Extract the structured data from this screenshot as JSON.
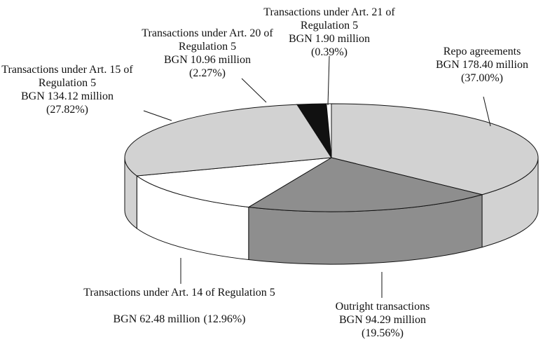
{
  "chart_data": {
    "type": "pie3d",
    "categories": [
      "Repo agreements",
      "Outright transactions",
      "Transactions under Art. 14 of Regulation 5",
      "Transactions under Art. 15 of Regulation 5",
      "Transactions under Art. 20 of Regulation 5",
      "Transactions under Art. 21 of Regulation 5"
    ],
    "values": [
      37.0,
      19.56,
      12.96,
      27.82,
      2.27,
      0.39
    ],
    "value_labels": [
      "(37.00%)",
      "(19.56%)",
      "(12.96%)",
      "(27.82%)",
      "(2.27%)",
      "(0.39%)"
    ],
    "amounts": [
      178.4,
      94.29,
      62.48,
      134.12,
      10.96,
      1.9
    ],
    "amount_labels": [
      "BGN 178.40 million",
      "BGN 94.29 million",
      "BGN 62.48 million",
      "BGN 134.12 million",
      "BGN 10.96 million",
      "BGN 1.90 million"
    ],
    "colors": [
      "#d2d2d2",
      "#8e8e8e",
      "#ffffff",
      "#d2d2d2",
      "#111111",
      "#ffffff"
    ]
  }
}
